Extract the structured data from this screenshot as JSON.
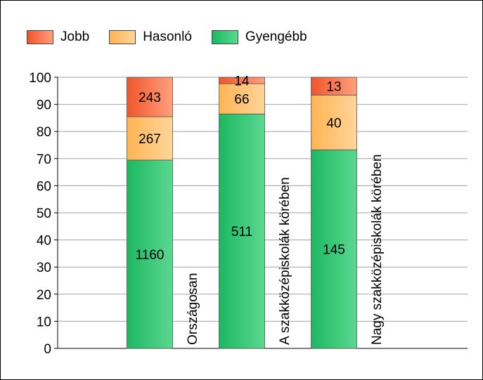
{
  "chart_data": {
    "type": "bar",
    "stacked": "percent",
    "title": "",
    "xlabel": "",
    "ylabel": "",
    "ylim": [
      0,
      100
    ],
    "yticks": [
      0,
      10,
      20,
      30,
      40,
      50,
      60,
      70,
      80,
      90,
      100
    ],
    "grid": true,
    "legend_position": "top-left",
    "categories": [
      "Országosan",
      "A szakközépiskolák körében",
      "Nagy szakközépiskolák körében"
    ],
    "series": [
      {
        "name": "Gyengébb",
        "values": [
          1160,
          511,
          145
        ],
        "color": "#3cc978"
      },
      {
        "name": "Hasonló",
        "values": [
          267,
          66,
          40
        ],
        "color": "#ffc273"
      },
      {
        "name": "Jobb",
        "values": [
          243,
          14,
          13
        ],
        "color": "#f5703f"
      }
    ],
    "legend_order": [
      "Jobb",
      "Hasonló",
      "Gyengébb"
    ]
  }
}
